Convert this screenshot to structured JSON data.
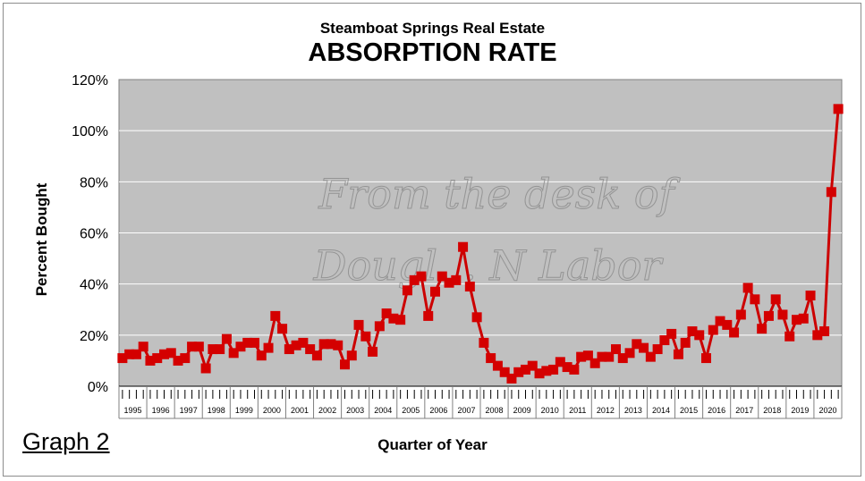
{
  "chart_data": {
    "type": "line",
    "subtitle": "Steamboat Springs Real Estate",
    "title": "ABSORPTION RATE",
    "xlabel": "Quarter of Year",
    "ylabel": "Percent Bought",
    "ylim": [
      0,
      120
    ],
    "yticks": [
      "0%",
      "20%",
      "40%",
      "60%",
      "80%",
      "100%",
      "120%"
    ],
    "ytick_values": [
      0,
      20,
      40,
      60,
      80,
      100,
      120
    ],
    "grid": true,
    "x_unit": "quarter",
    "years": [
      "1995",
      "1996",
      "1997",
      "1998",
      "1999",
      "2000",
      "2001",
      "2002",
      "2003",
      "2004",
      "2005",
      "2006",
      "2007",
      "2008",
      "2009",
      "2010",
      "2011",
      "2012",
      "2013",
      "2014",
      "2015",
      "2016",
      "2017",
      "2018",
      "2019",
      "2020"
    ],
    "series": [
      {
        "color": "#cc0000",
        "marker_color": "#d40000",
        "values": [
          11,
          12.5,
          12.5,
          15.5,
          10,
          11,
          12.5,
          13,
          10,
          11,
          15.5,
          15.5,
          7,
          14.5,
          14.5,
          18.5,
          13,
          15.5,
          17,
          17,
          12,
          15,
          27.5,
          22.5,
          14.5,
          16,
          17,
          14.5,
          12,
          16.5,
          16.5,
          16,
          8.5,
          12,
          24,
          19.5,
          13.5,
          23.5,
          28.5,
          26.5,
          26,
          37.5,
          41.5,
          43,
          27.5,
          37,
          43,
          40.5,
          41.5,
          54.5,
          39,
          27,
          17,
          11,
          8,
          5.5,
          3,
          5.5,
          6.5,
          8,
          5,
          6,
          6.5,
          9.5,
          7.5,
          6.5,
          11.5,
          12,
          9,
          11.5,
          11.5,
          14.5,
          11,
          13,
          16.5,
          15,
          11.5,
          14.5,
          18,
          20.5,
          12.5,
          17,
          21.5,
          20,
          11,
          22,
          25.5,
          24,
          21,
          28,
          38.5,
          34,
          22.5,
          27.5,
          34,
          28,
          19.5,
          26,
          26.5,
          35.5,
          20,
          21.5,
          76,
          108.5
        ]
      }
    ],
    "watermark": [
      "From the desk of",
      "Dougl... N Labor"
    ]
  },
  "graph_label": "Graph 2",
  "colors": {
    "plot_bg": "#c0c0c0",
    "gridline": "#ffffff",
    "line": "#cc0000",
    "marker": "#d40000",
    "watermark": "#8a8a8a"
  }
}
